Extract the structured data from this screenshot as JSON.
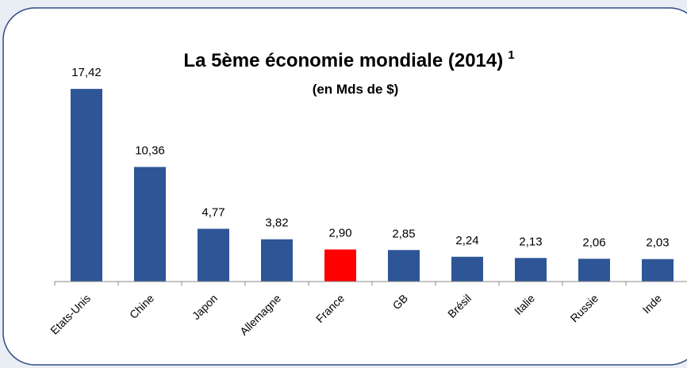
{
  "chart_data": {
    "type": "bar",
    "title": "La 5ème économie mondiale (2014)",
    "title_superscript": "1",
    "subtitle": "(en Mds de $)",
    "categories": [
      "Etats-Unis",
      "Chine",
      "Japon",
      "Allemagne",
      "France",
      "GB",
      "Brésil",
      "Italie",
      "Russie",
      "Inde"
    ],
    "values": [
      17.42,
      10.36,
      4.77,
      3.82,
      2.9,
      2.85,
      2.24,
      2.13,
      2.06,
      2.03
    ],
    "value_labels": [
      "17,42",
      "10,36",
      "4,77",
      "3,82",
      "2,90",
      "2,85",
      "2,24",
      "2,13",
      "2,06",
      "2,03"
    ],
    "colors": [
      "#2e5596",
      "#2e5596",
      "#2e5596",
      "#2e5596",
      "#ff0000",
      "#2e5596",
      "#2e5596",
      "#2e5596",
      "#2e5596",
      "#2e5596"
    ],
    "ylim": [
      0,
      18
    ]
  }
}
